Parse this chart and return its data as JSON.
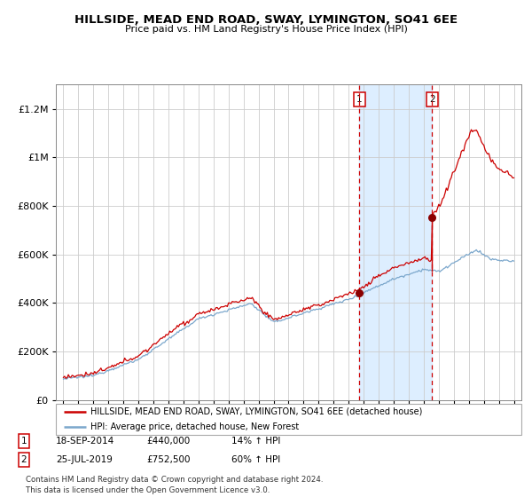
{
  "title": "HILLSIDE, MEAD END ROAD, SWAY, LYMINGTON, SO41 6EE",
  "subtitle": "Price paid vs. HM Land Registry's House Price Index (HPI)",
  "legend_line1": "HILLSIDE, MEAD END ROAD, SWAY, LYMINGTON, SO41 6EE (detached house)",
  "legend_line2": "HPI: Average price, detached house, New Forest",
  "sale1_date": "18-SEP-2014",
  "sale1_price": 440000,
  "sale1_label": "14% ↑ HPI",
  "sale1_year": 2014.72,
  "sale2_date": "25-JUL-2019",
  "sale2_price": 752500,
  "sale2_label": "60% ↑ HPI",
  "sale2_year": 2019.56,
  "footnote": "Contains HM Land Registry data © Crown copyright and database right 2024.\nThis data is licensed under the Open Government Licence v3.0.",
  "hpi_color": "#7ba7cc",
  "house_color": "#cc0000",
  "shade_color": "#ddeeff",
  "dashed_color": "#cc0000",
  "ylim_max": 1300000,
  "xlim_start": 1994.5,
  "xlim_end": 2025.5
}
